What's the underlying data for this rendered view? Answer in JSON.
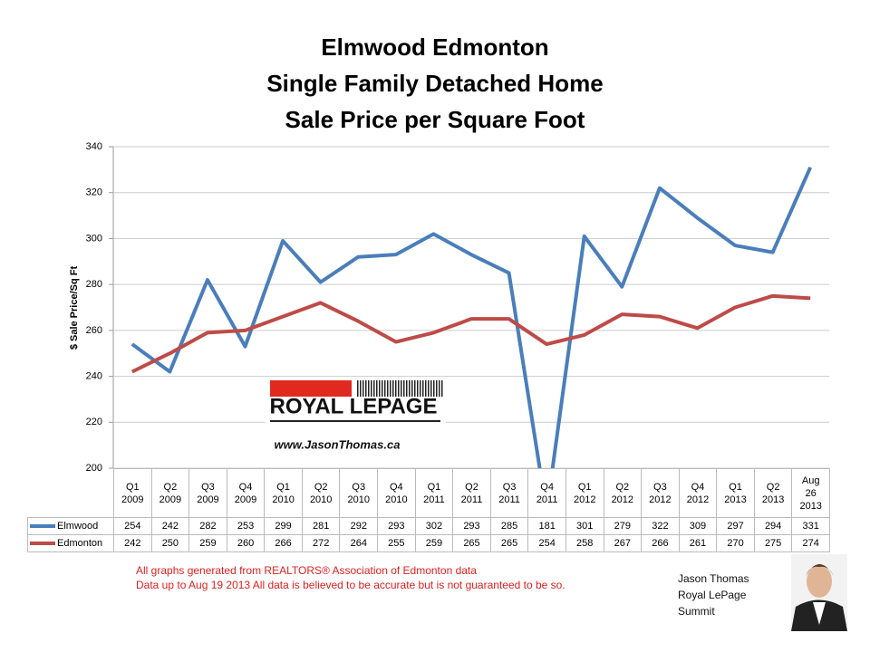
{
  "chart_data": {
    "type": "line",
    "title_lines": [
      "Elmwood Edmonton",
      "Single Family Detached Home",
      "Sale Price per Square Foot"
    ],
    "y_label": "$ Sale Price/Sq Ft",
    "categories": [
      "Q1 2009",
      "Q2 2009",
      "Q3 2009",
      "Q4 2009",
      "Q1 2010",
      "Q2 2010",
      "Q3 2010",
      "Q4 2010",
      "Q1 2011",
      "Q2 2011",
      "Q3 2011",
      "Q4 2011",
      "Q1 2012",
      "Q2 2012",
      "Q3 2012",
      "Q4 2012",
      "Q1 2013",
      "Q2 2013",
      "Aug 26 2013"
    ],
    "series": [
      {
        "name": "Elmwood",
        "color": "#4a7ebb",
        "values": [
          254,
          242,
          282,
          253,
          299,
          281,
          292,
          293,
          302,
          293,
          285,
          181,
          301,
          279,
          322,
          309,
          297,
          294,
          331
        ]
      },
      {
        "name": "Edmonton",
        "color": "#be4b48",
        "values": [
          242,
          250,
          259,
          260,
          266,
          272,
          264,
          255,
          259,
          265,
          265,
          254,
          258,
          267,
          266,
          261,
          270,
          275,
          274
        ]
      }
    ],
    "ylim": [
      200,
      340
    ],
    "yticks": [
      200,
      220,
      240,
      260,
      280,
      300,
      320,
      340
    ],
    "grid": true
  },
  "logo": {
    "brand": "ROYAL LEPAGE",
    "url": "www.JasonThomas.ca"
  },
  "notes": [
    "All graphs generated from REALTORS® Association of Edmonton data",
    "Data up to  Aug 19 2013  All data is believed to be accurate but is not guaranteed to be so."
  ],
  "author": [
    "Jason Thomas",
    "Royal LePage",
    "Summit"
  ]
}
